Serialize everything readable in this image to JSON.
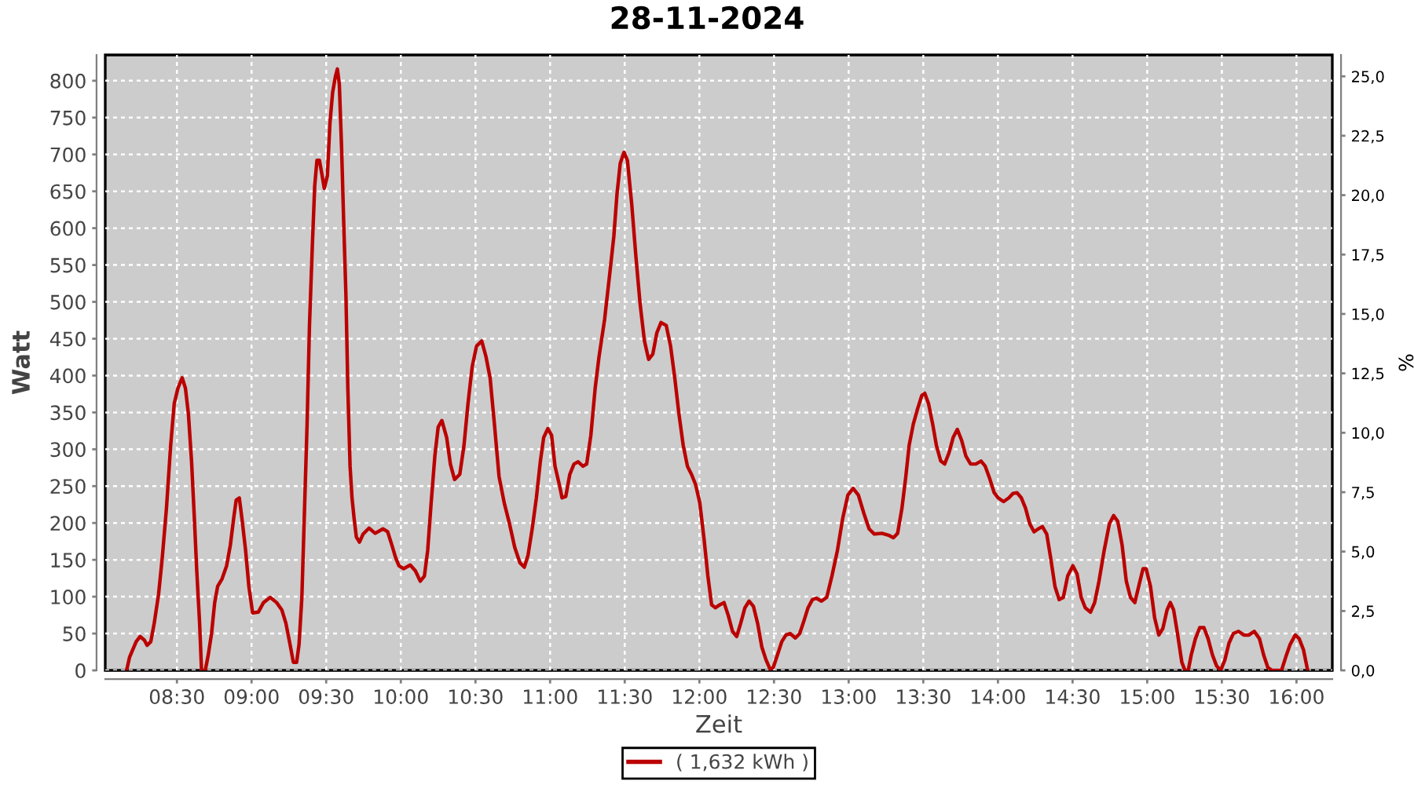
{
  "chart_data": {
    "type": "line",
    "title": "28-11-2024",
    "xlabel": "Zeit",
    "ylabel": "Watt",
    "y2label": "%",
    "x": [
      8.163,
      8.183,
      8.227,
      8.253,
      8.282,
      8.3,
      8.325,
      8.348,
      8.377,
      8.402,
      8.43,
      8.458,
      8.482,
      8.507,
      8.535,
      8.557,
      8.577,
      8.598,
      8.617,
      8.633,
      8.652,
      8.665,
      8.69,
      8.71,
      8.732,
      8.753,
      8.773,
      8.802,
      8.833,
      8.858,
      8.88,
      8.897,
      8.918,
      8.938,
      8.96,
      8.982,
      9.007,
      9.045,
      9.08,
      9.125,
      9.168,
      9.203,
      9.23,
      9.258,
      9.28,
      9.302,
      9.318,
      9.337,
      9.353,
      9.372,
      9.388,
      9.407,
      9.423,
      9.438,
      9.455,
      9.473,
      9.487,
      9.508,
      9.525,
      9.543,
      9.562,
      9.575,
      9.588,
      9.603,
      9.617,
      9.632,
      9.645,
      9.66,
      9.673,
      9.687,
      9.702,
      9.723,
      9.747,
      9.787,
      9.828,
      9.88,
      9.912,
      9.94,
      9.965,
      9.987,
      10.018,
      10.063,
      10.098,
      10.13,
      10.158,
      10.18,
      10.203,
      10.228,
      10.25,
      10.275,
      10.307,
      10.332,
      10.36,
      10.395,
      10.423,
      10.45,
      10.478,
      10.507,
      10.542,
      10.57,
      10.598,
      10.627,
      10.658,
      10.693,
      10.728,
      10.763,
      10.798,
      10.827,
      10.852,
      10.88,
      10.908,
      10.935,
      10.957,
      10.985,
      11.01,
      11.033,
      11.062,
      11.08,
      11.105,
      11.132,
      11.16,
      11.188,
      11.22,
      11.245,
      11.273,
      11.302,
      11.328,
      11.365,
      11.4,
      11.427,
      11.448,
      11.47,
      11.495,
      11.518,
      11.547,
      11.575,
      11.603,
      11.632,
      11.66,
      11.688,
      11.715,
      11.743,
      11.778,
      11.807,
      11.835,
      11.863,
      11.892,
      11.92,
      11.947,
      11.975,
      12.003,
      12.032,
      12.057,
      12.082,
      12.108,
      12.137,
      12.165,
      12.193,
      12.222,
      12.25,
      12.277,
      12.305,
      12.333,
      12.362,
      12.39,
      12.418,
      12.447,
      12.475,
      12.495,
      12.523,
      12.552,
      12.58,
      12.608,
      12.643,
      12.672,
      12.7,
      12.728,
      12.757,
      12.783,
      12.818,
      12.853,
      12.888,
      12.925,
      12.96,
      12.995,
      13.03,
      13.065,
      13.102,
      13.137,
      13.172,
      13.223,
      13.272,
      13.3,
      13.328,
      13.357,
      13.383,
      13.405,
      13.433,
      13.462,
      13.49,
      13.51,
      13.535,
      13.563,
      13.588,
      13.617,
      13.643,
      13.672,
      13.7,
      13.728,
      13.757,
      13.785,
      13.817,
      13.852,
      13.887,
      13.915,
      13.947,
      13.975,
      14.002,
      14.038,
      14.073,
      14.1,
      14.128,
      14.157,
      14.185,
      14.213,
      14.242,
      14.27,
      14.298,
      14.327,
      14.353,
      14.382,
      14.41,
      14.438,
      14.467,
      14.502,
      14.53,
      14.558,
      14.585,
      14.62,
      14.648,
      14.677,
      14.712,
      14.747,
      14.775,
      14.803,
      14.832,
      14.86,
      14.888,
      14.917,
      14.943,
      14.972,
      14.993,
      15.022,
      15.05,
      15.078,
      15.105,
      15.133,
      15.155,
      15.177,
      15.203,
      15.232,
      15.253,
      15.275,
      15.295,
      15.323,
      15.352,
      15.38,
      15.408,
      15.437,
      15.465,
      15.492,
      15.52,
      15.548,
      15.577,
      15.612,
      15.647,
      15.682,
      15.717,
      15.752,
      15.78,
      15.808,
      15.837,
      15.9,
      15.928,
      15.957,
      15.992,
      16.018,
      16.047,
      16.075
    ],
    "series": [
      {
        "name": "( 1,632 kWh )",
        "color": "#bb0000",
        "values": [
          0,
          18,
          39,
          46,
          41,
          34,
          39,
          64,
          103,
          153,
          220,
          305,
          362,
          383,
          397,
          383,
          348,
          284,
          206,
          135,
          64,
          0,
          0,
          21,
          50,
          92,
          114,
          124,
          142,
          170,
          206,
          231,
          234,
          202,
          163,
          114,
          78,
          79,
          92,
          99,
          92,
          82,
          64,
          35,
          11,
          11,
          35,
          99,
          206,
          334,
          468,
          575,
          657,
          692,
          692,
          671,
          654,
          671,
          742,
          784,
          806,
          816,
          795,
          710,
          610,
          511,
          383,
          277,
          234,
          206,
          181,
          174,
          185,
          193,
          186,
          192,
          188,
          170,
          153,
          142,
          138,
          143,
          135,
          121,
          128,
          163,
          227,
          291,
          330,
          339,
          316,
          280,
          259,
          266,
          305,
          362,
          412,
          440,
          447,
          426,
          397,
          334,
          263,
          227,
          199,
          167,
          146,
          140,
          156,
          192,
          234,
          284,
          316,
          328,
          319,
          277,
          252,
          234,
          236,
          266,
          280,
          283,
          277,
          280,
          319,
          383,
          426,
          476,
          539,
          589,
          646,
          688,
          703,
          692,
          632,
          561,
          497,
          447,
          422,
          429,
          458,
          472,
          468,
          440,
          397,
          348,
          305,
          277,
          266,
          252,
          227,
          177,
          128,
          89,
          85,
          89,
          92,
          75,
          53,
          46,
          64,
          85,
          94,
          87,
          64,
          32,
          14,
          1,
          4,
          21,
          39,
          48,
          50,
          44,
          50,
          67,
          85,
          96,
          98,
          94,
          99,
          128,
          163,
          206,
          238,
          247,
          238,
          213,
          192,
          185,
          186,
          183,
          180,
          186,
          220,
          263,
          305,
          334,
          355,
          373,
          376,
          362,
          334,
          305,
          284,
          280,
          295,
          316,
          327,
          312,
          291,
          280,
          280,
          284,
          277,
          259,
          241,
          234,
          229,
          234,
          240,
          241,
          234,
          220,
          199,
          188,
          192,
          195,
          185,
          153,
          114,
          96,
          99,
          128,
          142,
          131,
          99,
          85,
          79,
          92,
          121,
          163,
          199,
          210,
          202,
          170,
          121,
          99,
          92,
          114,
          138,
          138,
          114,
          71,
          48,
          57,
          82,
          92,
          82,
          50,
          11,
          0,
          0,
          21,
          43,
          58,
          58,
          43,
          21,
          6,
          0,
          14,
          37,
          50,
          53,
          48,
          48,
          53,
          43,
          21,
          4,
          0,
          0,
          18,
          35,
          48,
          43,
          28,
          0
        ]
      }
    ],
    "xlim": [
      8.02,
      16.24
    ],
    "xticks": [
      {
        "value": 8.5,
        "label": "08:30"
      },
      {
        "value": 9.0,
        "label": "09:00"
      },
      {
        "value": 9.5,
        "label": "09:30"
      },
      {
        "value": 10.0,
        "label": "10:00"
      },
      {
        "value": 10.5,
        "label": "10:30"
      },
      {
        "value": 11.0,
        "label": "11:00"
      },
      {
        "value": 11.5,
        "label": "11:30"
      },
      {
        "value": 12.0,
        "label": "12:00"
      },
      {
        "value": 12.5,
        "label": "12:30"
      },
      {
        "value": 13.0,
        "label": "13:00"
      },
      {
        "value": 13.5,
        "label": "13:30"
      },
      {
        "value": 14.0,
        "label": "14:00"
      },
      {
        "value": 14.5,
        "label": "14:30"
      },
      {
        "value": 15.0,
        "label": "15:00"
      },
      {
        "value": 15.5,
        "label": "15:30"
      },
      {
        "value": 16.0,
        "label": "16:00"
      }
    ],
    "ylim": [
      0,
      835
    ],
    "yticks": [
      0,
      50,
      100,
      150,
      200,
      250,
      300,
      350,
      400,
      450,
      500,
      550,
      600,
      650,
      700,
      750,
      800
    ],
    "y2lim": [
      0,
      25.9
    ],
    "y2ticks": [
      {
        "value": 0,
        "label": "0,0"
      },
      {
        "value": 2.5,
        "label": "2,5"
      },
      {
        "value": 5,
        "label": "5,0"
      },
      {
        "value": 7.5,
        "label": "7,5"
      },
      {
        "value": 10,
        "label": "10,0"
      },
      {
        "value": 12.5,
        "label": "12,5"
      },
      {
        "value": 15,
        "label": "15,0"
      },
      {
        "value": 17.5,
        "label": "17,5"
      },
      {
        "value": 20,
        "label": "20,0"
      },
      {
        "value": 22.5,
        "label": "22,5"
      },
      {
        "value": 25,
        "label": "25,0"
      }
    ],
    "grid": true,
    "legend": "bottom"
  }
}
